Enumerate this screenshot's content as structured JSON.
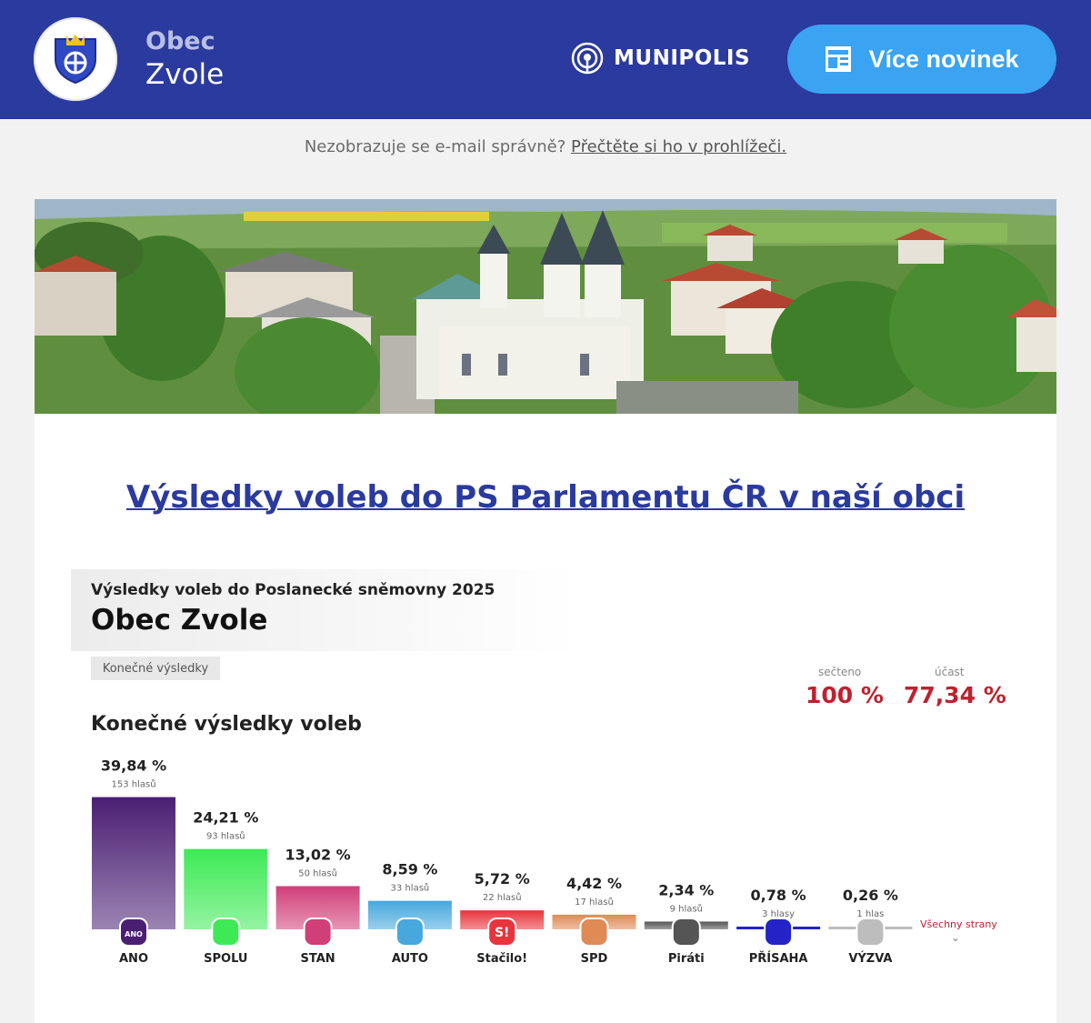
{
  "header": {
    "town_prefix": "Obec",
    "town_name": "Zvole",
    "brand": "MUNIPOLIS",
    "more_news_label": "Více novinek",
    "colors": {
      "bar": "#2b3a9e",
      "button": "#3aa3f2"
    }
  },
  "notice": {
    "text": "Nezobrazuje se e-mail správně?",
    "link": "Přečtěte si ho v prohlížeči."
  },
  "article": {
    "title": "Výsledky voleb do PS Parlamentu ČR v naší obci"
  },
  "election": {
    "subtitle": "Výsledky voleb do Poslanecké sněmovny 2025",
    "town": "Obec Zvole",
    "badge": "Konečné výsledky",
    "counted_label": "sečteno",
    "counted_value": "100 %",
    "turnout_label": "účast",
    "turnout_value": "77,34 %",
    "heading": "Konečné výsledky voleb",
    "all_parties": "Všechny strany"
  },
  "chart_data": {
    "type": "bar",
    "categories": [
      "ANO",
      "SPOLU",
      "STAN",
      "AUTO",
      "Stačilo!",
      "SPD",
      "Piráti",
      "PŘÍSAHA",
      "VÝZVA"
    ],
    "values": [
      39.84,
      24.21,
      13.02,
      8.59,
      5.72,
      4.42,
      2.34,
      0.78,
      0.26
    ],
    "value_labels": [
      "39,84 %",
      "24,21 %",
      "13,02 %",
      "8,59 %",
      "5,72 %",
      "4,42 %",
      "2,34 %",
      "0,78 %",
      "0,26 %"
    ],
    "votes_labels": [
      "153 hlasů",
      "93 hlasů",
      "50 hlasů",
      "33 hlasů",
      "22 hlasů",
      "17 hlasů",
      "9 hlasů",
      "3 hlasy",
      "1 hlas"
    ],
    "logo_texts": [
      "ANO",
      "",
      "",
      "",
      "S!",
      "",
      "",
      "",
      ""
    ],
    "colors": [
      "#4a1f73",
      "#3dea55",
      "#d13f78",
      "#46a8dd",
      "#e8343c",
      "#e08a56",
      "#555555",
      "#2323c8",
      "#bdbdbd"
    ],
    "ylim": [
      0,
      40
    ]
  }
}
